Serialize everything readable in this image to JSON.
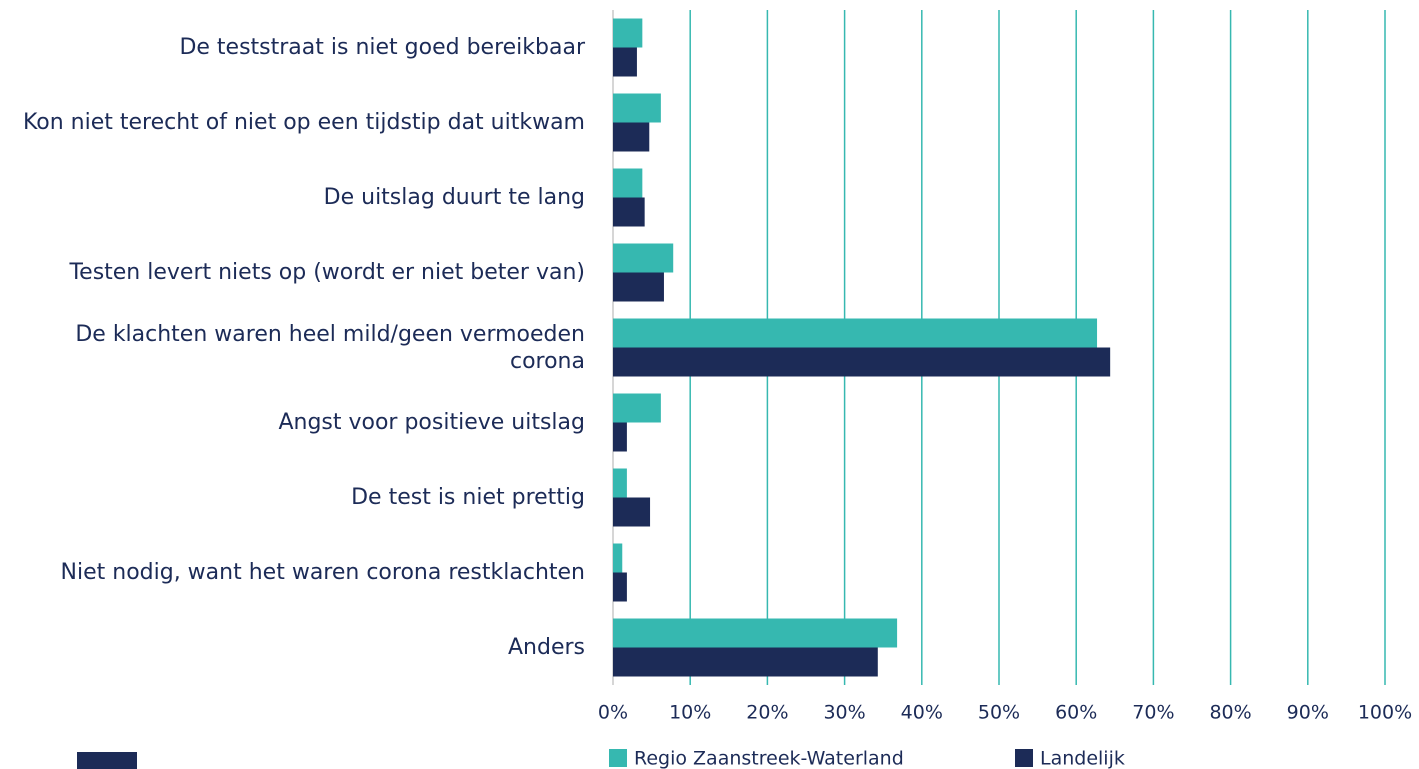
{
  "chart_data": {
    "type": "hbar",
    "categories": [
      "De teststraat is niet goed bereikbaar",
      "Kon niet terecht of niet op een tijdstip dat uitkwam",
      "De uitslag duurt te lang",
      "Testen levert niets op (wordt er niet beter van)",
      "De klachten waren heel mild/geen vermoeden corona",
      "Angst voor positieve uitslag",
      "De test is niet prettig",
      "Niet nodig, want het waren corona restklachten",
      "Anders"
    ],
    "series": [
      {
        "name": "Regio Zaanstreek-Waterland",
        "color": "#36b8b0",
        "values": [
          3.8,
          6.2,
          3.8,
          7.8,
          62.7,
          6.2,
          1.8,
          1.2,
          36.8
        ]
      },
      {
        "name": "Landelijk",
        "color": "#1c2b57",
        "values": [
          3.1,
          4.7,
          4.1,
          6.6,
          64.4,
          1.8,
          4.8,
          1.8,
          34.3
        ]
      }
    ],
    "xlim": [
      0,
      100
    ],
    "xticks": [
      {
        "value": 0,
        "label": "0%"
      },
      {
        "value": 10,
        "label": "10%"
      },
      {
        "value": 20,
        "label": "20%"
      },
      {
        "value": 30,
        "label": "30%"
      },
      {
        "value": 40,
        "label": "40%"
      },
      {
        "value": 50,
        "label": "50%"
      },
      {
        "value": 60,
        "label": "60%"
      },
      {
        "value": 70,
        "label": "70%"
      },
      {
        "value": 80,
        "label": "80%"
      },
      {
        "value": 90,
        "label": "90%"
      },
      {
        "value": 100,
        "label": "100%"
      }
    ],
    "grid": true,
    "grid_color": "#36b8b0",
    "legend": "bottom"
  }
}
